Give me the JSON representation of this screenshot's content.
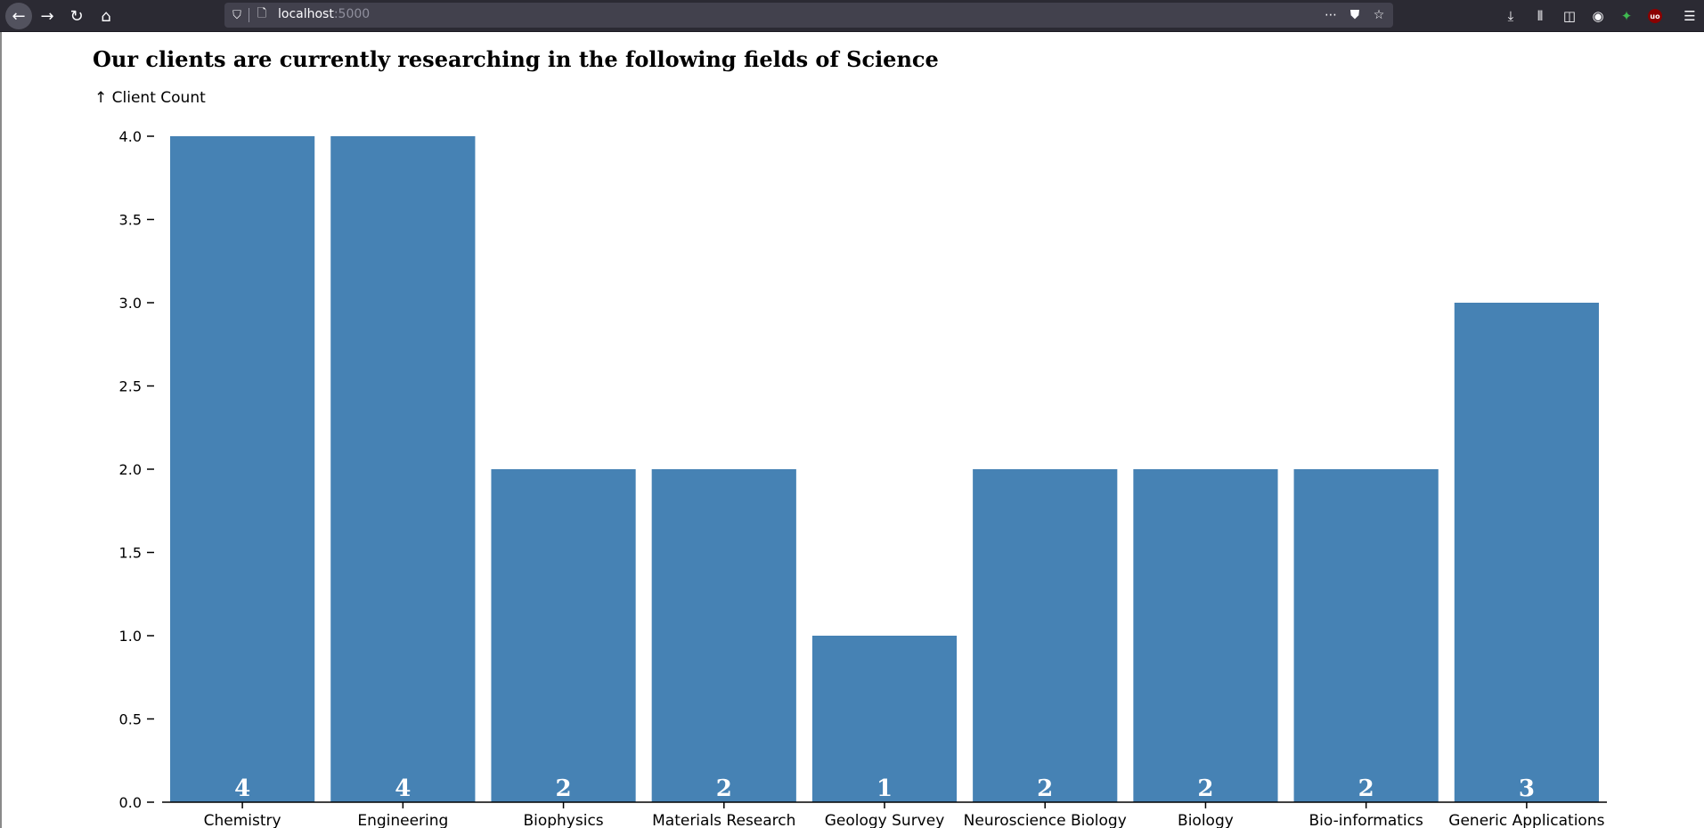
{
  "browser": {
    "url_host": "localhost",
    "url_port": ":5000",
    "icons": {
      "back": "arrow-left-icon",
      "forward": "arrow-right-icon",
      "reload": "reload-icon",
      "home": "home-icon",
      "shield": "shield-icon",
      "page": "page-icon",
      "more": "more-icon",
      "pocket": "pocket-icon",
      "bookmark": "star-icon",
      "download": "download-icon",
      "library": "library-icon",
      "sidebar": "sidebar-icon",
      "account": "account-icon",
      "extension_1": "extension-green-icon",
      "extension_2": "ublock-icon",
      "menu": "hamburger-menu-icon"
    }
  },
  "page": {
    "title": "Our clients are currently researching in the following fields of Science"
  },
  "chart_data": {
    "type": "bar",
    "ylabel": "↑ Client Count",
    "ylim": [
      0,
      4
    ],
    "yticks": [
      "0.0",
      "0.5",
      "1.0",
      "1.5",
      "2.0",
      "2.5",
      "3.0",
      "3.5",
      "4.0"
    ],
    "categories": [
      "Chemistry",
      "Engineering",
      "Biophysics",
      "Materials Research",
      "Geology Survey",
      "Neuroscience Biology",
      "Biology",
      "Bio-informatics",
      "Generic Applications"
    ],
    "values": [
      4,
      4,
      2,
      2,
      1,
      2,
      2,
      2,
      3
    ],
    "data_labels": [
      "4",
      "4",
      "2",
      "2",
      "1",
      "2",
      "2",
      "2",
      "3"
    ],
    "bar_color": "#4682b4",
    "grid": false
  }
}
